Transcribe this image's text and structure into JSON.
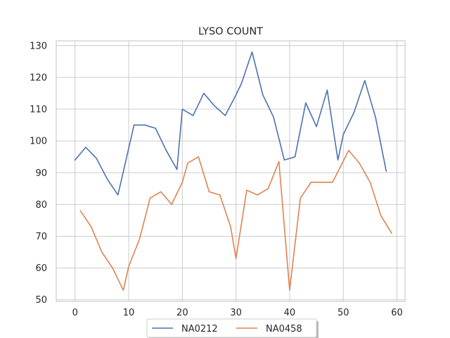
{
  "chart_data": {
    "type": "line",
    "title": "LYSO COUNT",
    "xlabel": "",
    "ylabel": "",
    "xlim": [
      -3.5,
      61.5
    ],
    "ylim": [
      49.5,
      131.5
    ],
    "xticks": [
      0,
      10,
      20,
      30,
      40,
      50,
      60
    ],
    "yticks": [
      50,
      60,
      70,
      80,
      90,
      100,
      110,
      120,
      130
    ],
    "grid": true,
    "legend_position": "bottom-center",
    "series": [
      {
        "name": "NA0212",
        "color": "#4c72b0",
        "x": [
          0,
          2,
          4,
          6,
          8,
          11,
          13,
          15,
          17,
          19,
          20,
          22,
          24,
          26,
          28,
          30,
          31,
          33,
          35,
          37,
          39,
          41,
          43,
          45,
          47,
          49,
          50,
          52,
          54,
          56,
          58
        ],
        "y": [
          94,
          98,
          94.5,
          88,
          83,
          105,
          105,
          104,
          97,
          91,
          110,
          108,
          115,
          111,
          108,
          114.5,
          118,
          128,
          114.5,
          107.5,
          94,
          95,
          112,
          104.5,
          116,
          94,
          102,
          109,
          119,
          107.5,
          90.5
        ]
      },
      {
        "name": "NA0458",
        "color": "#dd8452",
        "x": [
          1,
          3,
          5,
          7,
          9,
          10,
          12,
          14,
          16,
          18,
          20,
          21,
          23,
          25,
          27,
          29,
          30,
          32,
          34,
          36,
          38,
          40,
          42,
          44,
          46,
          48,
          51,
          53,
          55,
          57,
          59
        ],
        "y": [
          78,
          73,
          65,
          60,
          53,
          60.5,
          69,
          82,
          84,
          80,
          87,
          93,
          95,
          84,
          83,
          73,
          63,
          84.5,
          83,
          85,
          93.5,
          53,
          82,
          87,
          87,
          87,
          97,
          93,
          87,
          76.5,
          71
        ]
      }
    ]
  }
}
